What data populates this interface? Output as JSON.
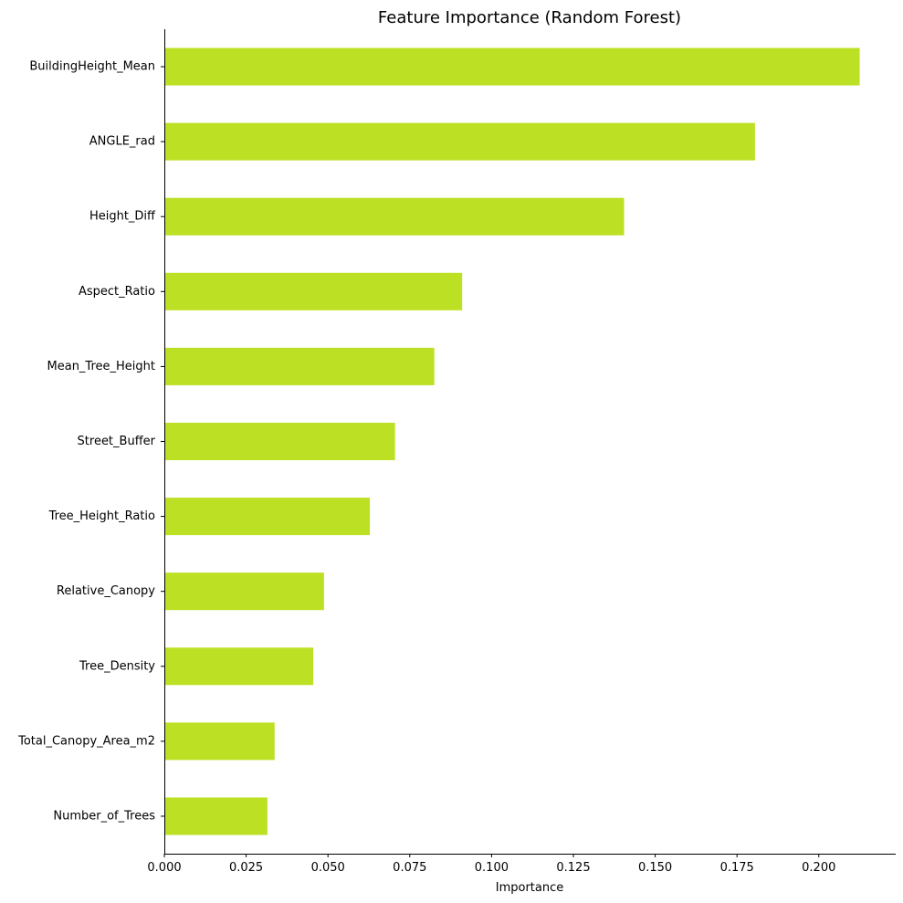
{
  "chart_data": {
    "type": "bar",
    "orientation": "horizontal",
    "title": "Feature Importance (Random Forest)",
    "xlabel": "Importance",
    "ylabel": "",
    "categories": [
      "BuildingHeight_Mean",
      "ANGLE_rad",
      "Height_Diff",
      "Aspect_Ratio",
      "Mean_Tree_Height",
      "Street_Buffer",
      "Tree_Height_Ratio",
      "Relative_Canopy",
      "Tree_Density",
      "Total_Canopy_Area_m2",
      "Number_of_Trees"
    ],
    "values": [
      0.2125,
      0.1805,
      0.1405,
      0.091,
      0.0825,
      0.0705,
      0.0628,
      0.0488,
      0.0455,
      0.0337,
      0.0315
    ],
    "xlim": [
      0,
      0.2235
    ],
    "xticks": [
      0.0,
      0.025,
      0.05,
      0.075,
      0.1,
      0.125,
      0.15,
      0.175,
      0.2
    ],
    "xtick_labels": [
      "0.000",
      "0.025",
      "0.050",
      "0.075",
      "0.100",
      "0.125",
      "0.150",
      "0.175",
      "0.200"
    ],
    "bar_color": "#bce124",
    "grid": false,
    "legend": "none"
  }
}
